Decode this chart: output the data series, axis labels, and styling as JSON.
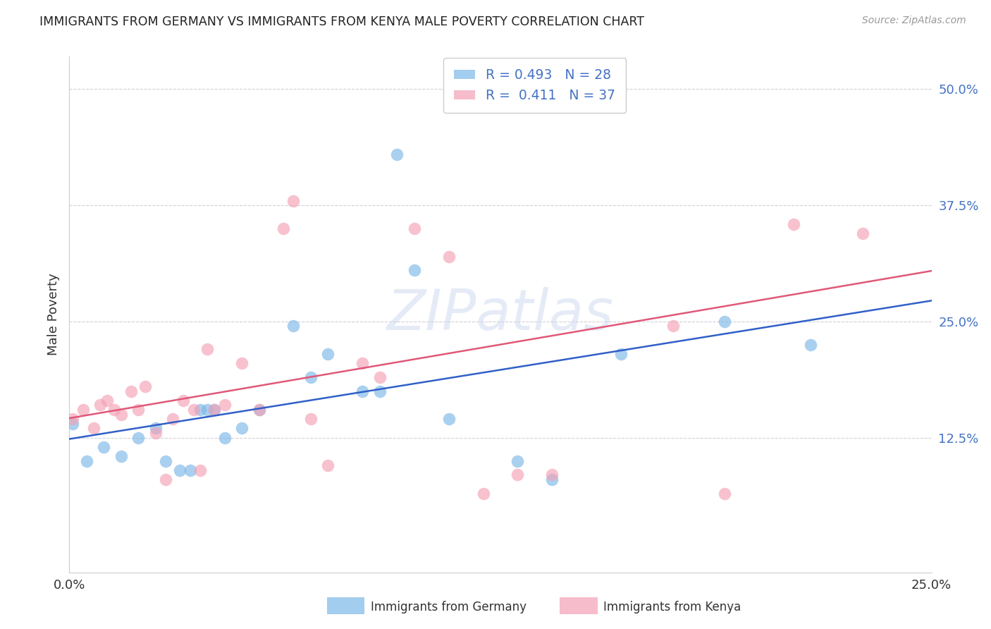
{
  "title": "IMMIGRANTS FROM GERMANY VS IMMIGRANTS FROM KENYA MALE POVERTY CORRELATION CHART",
  "source": "Source: ZipAtlas.com",
  "ylabel": "Male Poverty",
  "x_ticklabels": [
    "0.0%",
    "25.0%"
  ],
  "y_ticklabels": [
    "50.0%",
    "37.5%",
    "25.0%",
    "12.5%"
  ],
  "xlim": [
    0.0,
    0.25
  ],
  "ylim": [
    -0.02,
    0.535
  ],
  "y_ticks": [
    0.125,
    0.25,
    0.375,
    0.5
  ],
  "x_ticks": [
    0.0,
    0.25
  ],
  "germany_R": 0.493,
  "germany_N": 28,
  "kenya_R": 0.411,
  "kenya_N": 37,
  "germany_color": "#7db8e8",
  "kenya_color": "#f5a0b5",
  "germany_line_color": "#3060c8",
  "kenya_line_color": "#e05878",
  "background_color": "#ffffff",
  "watermark": "ZIPatlas",
  "legend_label_germany": "Immigrants from Germany",
  "legend_label_kenya": "Immigrants from Kenya",
  "germany_x": [
    0.001,
    0.005,
    0.01,
    0.015,
    0.02,
    0.025,
    0.028,
    0.032,
    0.035,
    0.038,
    0.04,
    0.042,
    0.045,
    0.05,
    0.055,
    0.065,
    0.07,
    0.075,
    0.085,
    0.09,
    0.095,
    0.1,
    0.11,
    0.13,
    0.14,
    0.16,
    0.19,
    0.215
  ],
  "germany_y": [
    0.14,
    0.1,
    0.115,
    0.105,
    0.125,
    0.135,
    0.1,
    0.09,
    0.09,
    0.155,
    0.155,
    0.155,
    0.125,
    0.135,
    0.155,
    0.245,
    0.19,
    0.215,
    0.175,
    0.175,
    0.43,
    0.305,
    0.145,
    0.1,
    0.08,
    0.215,
    0.25,
    0.225
  ],
  "kenya_x": [
    0.001,
    0.004,
    0.007,
    0.009,
    0.011,
    0.013,
    0.015,
    0.018,
    0.02,
    0.022,
    0.025,
    0.028,
    0.03,
    0.033,
    0.036,
    0.038,
    0.04,
    0.042,
    0.045,
    0.05,
    0.055,
    0.062,
    0.065,
    0.07,
    0.075,
    0.085,
    0.09,
    0.1,
    0.11,
    0.12,
    0.13,
    0.14,
    0.155,
    0.175,
    0.19,
    0.21,
    0.23
  ],
  "kenya_y": [
    0.145,
    0.155,
    0.135,
    0.16,
    0.165,
    0.155,
    0.15,
    0.175,
    0.155,
    0.18,
    0.13,
    0.08,
    0.145,
    0.165,
    0.155,
    0.09,
    0.22,
    0.155,
    0.16,
    0.205,
    0.155,
    0.35,
    0.38,
    0.145,
    0.095,
    0.205,
    0.19,
    0.35,
    0.32,
    0.065,
    0.085,
    0.085,
    0.5,
    0.245,
    0.065,
    0.355,
    0.345
  ]
}
